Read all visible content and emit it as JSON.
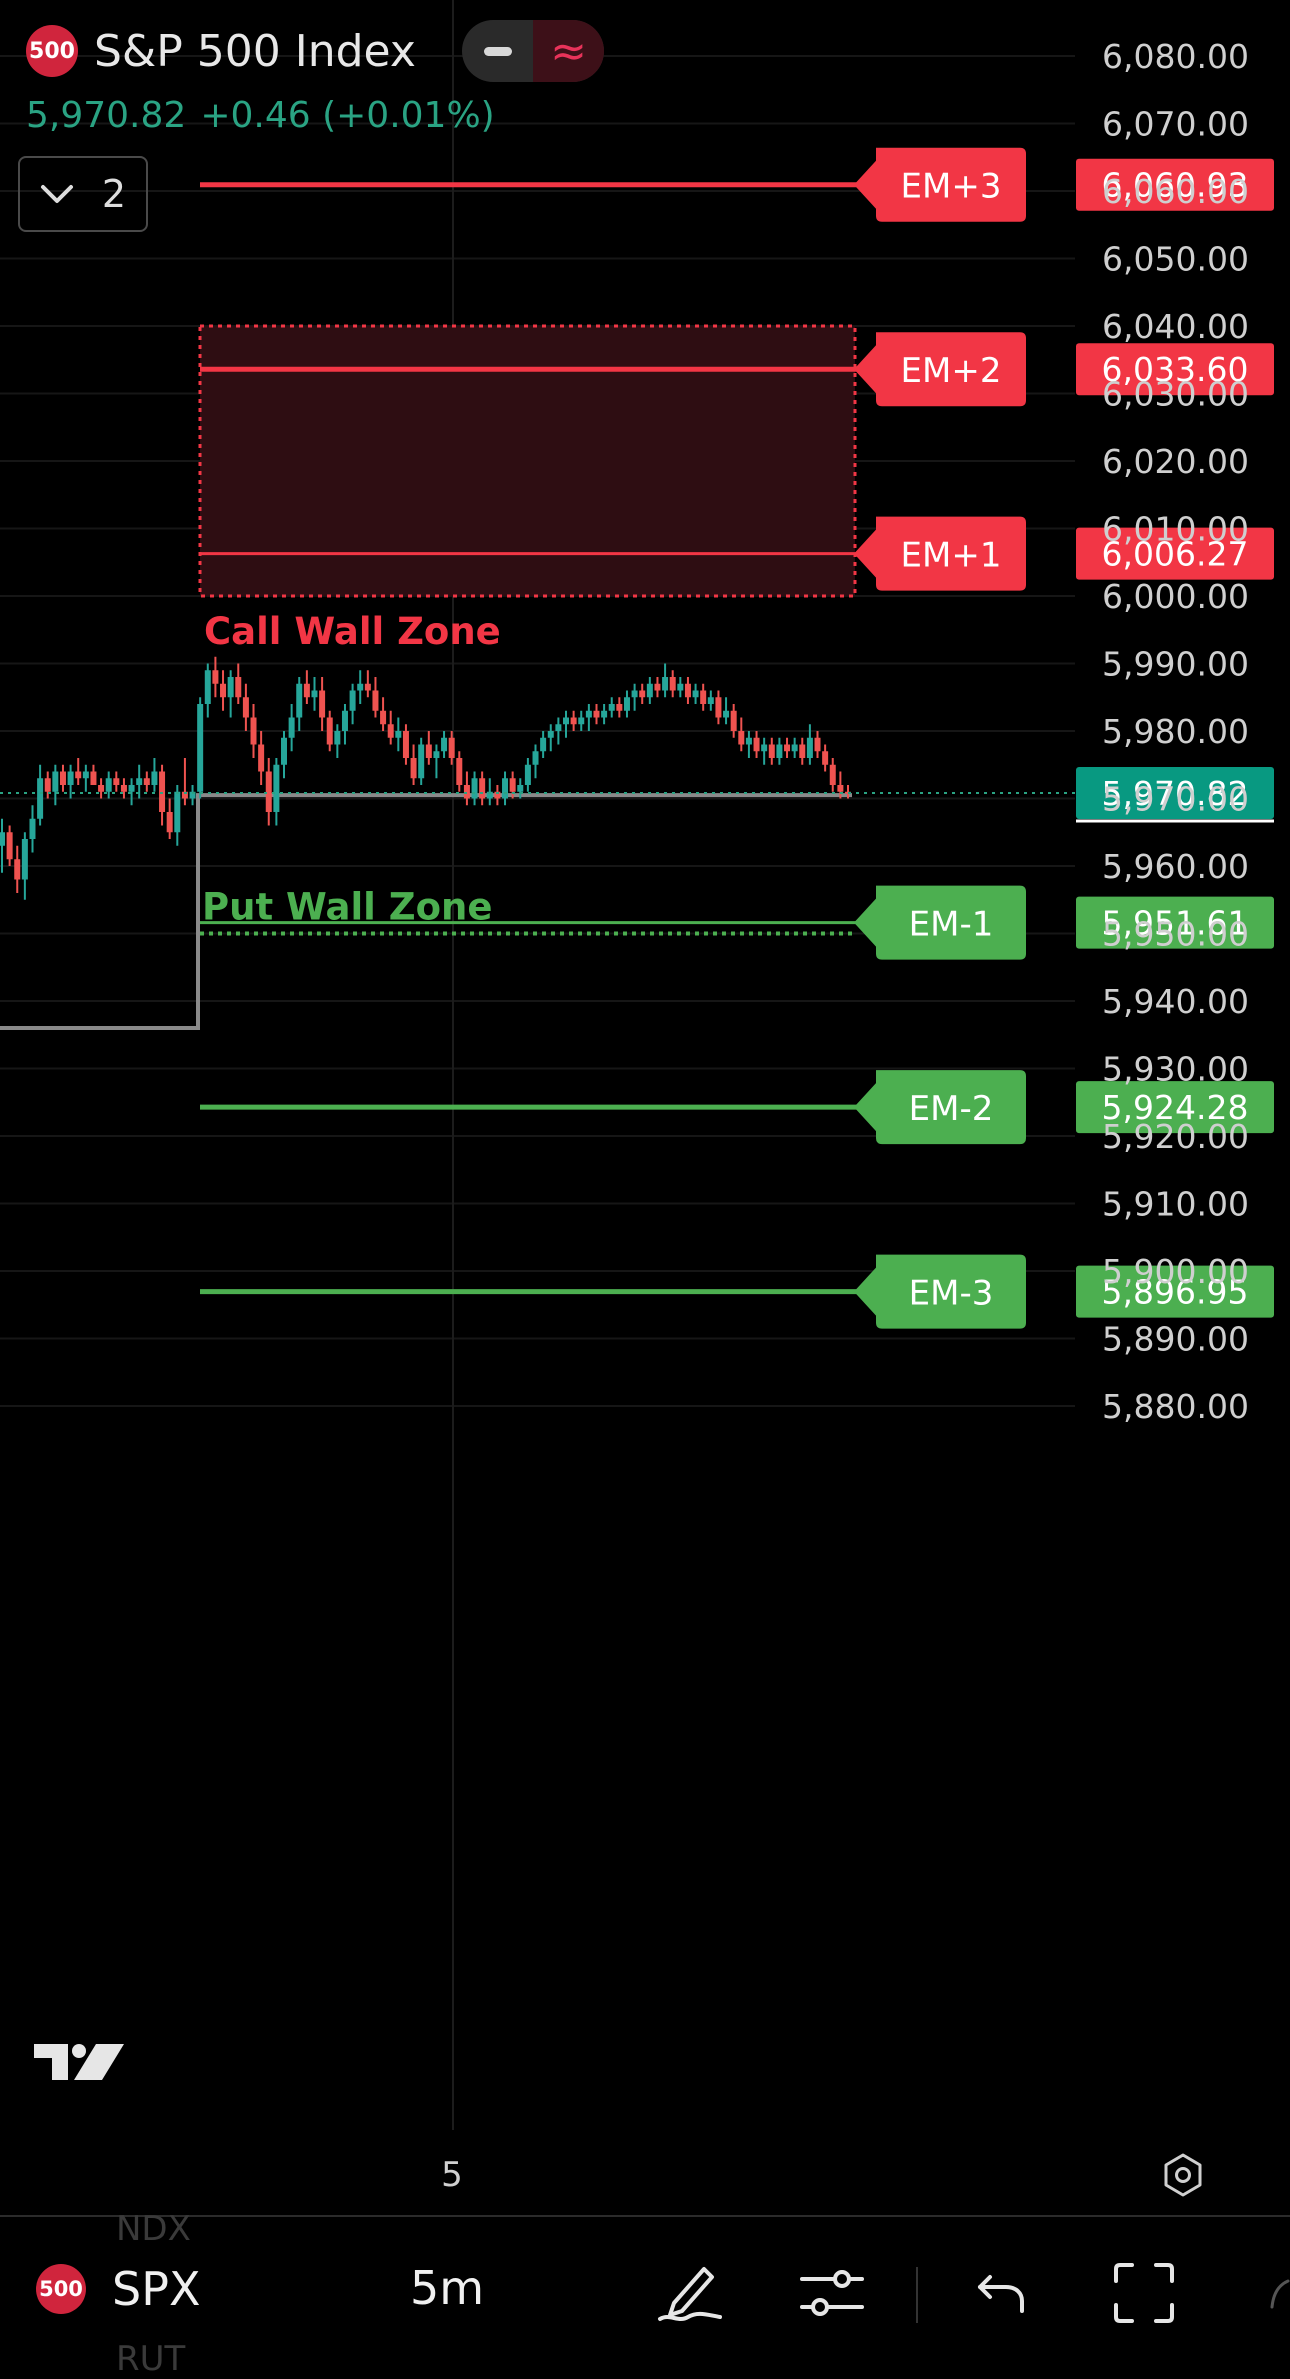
{
  "header": {
    "badge_text": "500",
    "title": "S&P 500 Index",
    "last_price": "5,970.82",
    "change": "+0.46 (+0.01%)",
    "collapse_count": "2",
    "mode_icons": [
      "minus-icon",
      "wave-icon"
    ]
  },
  "chart_data": {
    "type": "candlestick",
    "timeframe": "5m",
    "x_tick_labels": [
      "5"
    ],
    "y_axis": {
      "ylim": [
        5875,
        6085
      ],
      "tick_values": [
        6080,
        6070,
        6060,
        6050,
        6040,
        6030,
        6020,
        6010,
        6000,
        5990,
        5980,
        5970,
        5960,
        5950,
        5940,
        5930,
        5920,
        5910,
        5900,
        5890,
        5880
      ],
      "tick_labels": [
        "6,080.00",
        "6,070.00",
        "6,060.00",
        "6,050.00",
        "6,040.00",
        "6,030.00",
        "6,020.00",
        "6,010.00",
        "6,000.00",
        "5,990.00",
        "5,980.00",
        "5,970.00",
        "5,960.00",
        "5,950.00",
        "5,940.00",
        "5,930.00",
        "5,920.00",
        "5,910.00",
        "5,900.00",
        "5,890.00",
        "5,880.00"
      ]
    },
    "current_price": 5970.82,
    "current_price_label": "5,970.82",
    "levels": [
      {
        "name": "EM+3",
        "value": 6060.93,
        "label": "6,060.93",
        "color": "#f23645"
      },
      {
        "name": "EM+2",
        "value": 6033.6,
        "label": "6,033.60",
        "color": "#f23645"
      },
      {
        "name": "EM+1",
        "value": 6006.27,
        "label": "6,006.27",
        "color": "#f23645"
      },
      {
        "name": "EM-1",
        "value": 5951.61,
        "label": "5,951.61",
        "color": "#4caf50"
      },
      {
        "name": "EM-2",
        "value": 5924.28,
        "label": "5,924.28",
        "color": "#4caf50"
      },
      {
        "name": "EM-3",
        "value": 5896.95,
        "label": "5,896.95",
        "color": "#4caf50"
      }
    ],
    "zones": [
      {
        "name": "Call Wall Zone",
        "low": 6000.0,
        "high": 6040.0,
        "color": "#f23645"
      },
      {
        "name": "Put Wall Zone",
        "low": 5950.0,
        "high": 5950.0,
        "color": "#4caf50"
      }
    ],
    "range_box": {
      "low": 5936.0,
      "high": 5970.5,
      "color": "#8a8a8a"
    },
    "candles": [
      [
        5963,
        5967,
        5959,
        5965
      ],
      [
        5965,
        5966,
        5960,
        5961
      ],
      [
        5961,
        5963,
        5956,
        5958
      ],
      [
        5958,
        5965,
        5955,
        5964
      ],
      [
        5964,
        5969,
        5962,
        5967
      ],
      [
        5967,
        5975,
        5966,
        5973
      ],
      [
        5973,
        5974,
        5970,
        5971
      ],
      [
        5971,
        5975,
        5969,
        5974
      ],
      [
        5974,
        5975,
        5971,
        5972
      ],
      [
        5972,
        5975,
        5970,
        5974
      ],
      [
        5974,
        5976,
        5972,
        5973
      ],
      [
        5973,
        5975,
        5971,
        5974
      ],
      [
        5974,
        5975,
        5972,
        5972
      ],
      [
        5972,
        5973,
        5970,
        5971
      ],
      [
        5971,
        5974,
        5970,
        5973
      ],
      [
        5973,
        5974,
        5971,
        5972
      ],
      [
        5972,
        5973,
        5970,
        5971
      ],
      [
        5971,
        5973,
        5969,
        5972
      ],
      [
        5972,
        5975,
        5970,
        5973
      ],
      [
        5973,
        5974,
        5971,
        5972
      ],
      [
        5972,
        5976,
        5971,
        5974
      ],
      [
        5974,
        5975,
        5966,
        5968
      ],
      [
        5968,
        5970,
        5964,
        5965
      ],
      [
        5965,
        5972,
        5963,
        5971
      ],
      [
        5971,
        5976,
        5969,
        5970
      ],
      [
        5970,
        5972,
        5969,
        5971
      ],
      [
        5971,
        5985,
        5970,
        5984
      ],
      [
        5984,
        5990,
        5982,
        5989
      ],
      [
        5989,
        5991,
        5985,
        5987
      ],
      [
        5987,
        5989,
        5983,
        5985
      ],
      [
        5985,
        5989,
        5982,
        5988
      ],
      [
        5988,
        5990,
        5984,
        5985
      ],
      [
        5985,
        5987,
        5980,
        5982
      ],
      [
        5982,
        5984,
        5976,
        5978
      ],
      [
        5978,
        5980,
        5972,
        5974
      ],
      [
        5974,
        5976,
        5966,
        5968
      ],
      [
        5968,
        5976,
        5966,
        5975
      ],
      [
        5975,
        5980,
        5973,
        5979
      ],
      [
        5979,
        5984,
        5977,
        5982
      ],
      [
        5982,
        5988,
        5980,
        5987
      ],
      [
        5987,
        5989,
        5984,
        5985
      ],
      [
        5985,
        5988,
        5983,
        5986
      ],
      [
        5986,
        5988,
        5980,
        5982
      ],
      [
        5982,
        5983,
        5977,
        5978
      ],
      [
        5978,
        5981,
        5976,
        5980
      ],
      [
        5980,
        5984,
        5978,
        5983
      ],
      [
        5983,
        5987,
        5981,
        5986
      ],
      [
        5986,
        5989,
        5984,
        5987
      ],
      [
        5987,
        5989,
        5985,
        5986
      ],
      [
        5986,
        5988,
        5982,
        5983
      ],
      [
        5983,
        5985,
        5980,
        5981
      ],
      [
        5981,
        5983,
        5978,
        5979
      ],
      [
        5979,
        5982,
        5977,
        5980
      ],
      [
        5980,
        5981,
        5975,
        5976
      ],
      [
        5976,
        5978,
        5972,
        5973
      ],
      [
        5973,
        5979,
        5972,
        5978
      ],
      [
        5978,
        5980,
        5975,
        5976
      ],
      [
        5976,
        5978,
        5973,
        5977
      ],
      [
        5977,
        5980,
        5976,
        5979
      ],
      [
        5979,
        5980,
        5975,
        5976
      ],
      [
        5976,
        5977,
        5971,
        5972
      ],
      [
        5972,
        5974,
        5969,
        5970
      ],
      [
        5970,
        5974,
        5969,
        5973
      ],
      [
        5973,
        5974,
        5969,
        5970
      ],
      [
        5970,
        5973,
        5969,
        5971
      ],
      [
        5971,
        5972,
        5969,
        5970
      ],
      [
        5970,
        5974,
        5969,
        5973
      ],
      [
        5973,
        5974,
        5970,
        5971
      ],
      [
        5971,
        5973,
        5970,
        5972
      ],
      [
        5972,
        5976,
        5971,
        5975
      ],
      [
        5975,
        5978,
        5973,
        5977
      ],
      [
        5977,
        5980,
        5976,
        5979
      ],
      [
        5979,
        5981,
        5977,
        5980
      ],
      [
        5980,
        5982,
        5978,
        5981
      ],
      [
        5981,
        5983,
        5979,
        5982
      ],
      [
        5982,
        5983,
        5980,
        5981
      ],
      [
        5981,
        5983,
        5980,
        5982
      ],
      [
        5982,
        5984,
        5980,
        5983
      ],
      [
        5983,
        5984,
        5981,
        5982
      ],
      [
        5982,
        5984,
        5981,
        5983
      ],
      [
        5983,
        5985,
        5982,
        5984
      ],
      [
        5984,
        5985,
        5982,
        5983
      ],
      [
        5983,
        5986,
        5982,
        5985
      ],
      [
        5985,
        5987,
        5983,
        5986
      ],
      [
        5986,
        5987,
        5984,
        5985
      ],
      [
        5985,
        5988,
        5984,
        5987
      ],
      [
        5987,
        5988,
        5985,
        5986
      ],
      [
        5986,
        5990,
        5985,
        5988
      ],
      [
        5988,
        5989,
        5985,
        5986
      ],
      [
        5986,
        5988,
        5985,
        5987
      ],
      [
        5987,
        5988,
        5984,
        5985
      ],
      [
        5985,
        5987,
        5984,
        5986
      ],
      [
        5986,
        5987,
        5983,
        5984
      ],
      [
        5984,
        5986,
        5983,
        5985
      ],
      [
        5985,
        5986,
        5981,
        5982
      ],
      [
        5982,
        5985,
        5981,
        5983
      ],
      [
        5983,
        5984,
        5979,
        5980
      ],
      [
        5980,
        5982,
        5977,
        5978
      ],
      [
        5978,
        5980,
        5976,
        5979
      ],
      [
        5979,
        5980,
        5976,
        5977
      ],
      [
        5977,
        5979,
        5975,
        5978
      ],
      [
        5978,
        5979,
        5975,
        5976
      ],
      [
        5976,
        5979,
        5975,
        5978
      ],
      [
        5978,
        5979,
        5976,
        5977
      ],
      [
        5977,
        5979,
        5976,
        5978
      ],
      [
        5978,
        5979,
        5975,
        5976
      ],
      [
        5976,
        5981,
        5975,
        5979
      ],
      [
        5979,
        5980,
        5976,
        5977
      ],
      [
        5977,
        5978,
        5974,
        5975
      ],
      [
        5975,
        5976,
        5971,
        5972
      ],
      [
        5972,
        5974,
        5970,
        5971
      ],
      [
        5971,
        5972,
        5970,
        5970.82
      ]
    ]
  },
  "toolbar": {
    "symbol_badge": "500",
    "symbol": "SPX",
    "interval": "5m",
    "ghost_above": "NDX",
    "ghost_below": "RUT",
    "icons": [
      "draw-icon",
      "indicators-icon",
      "undo-icon",
      "fullscreen-icon"
    ]
  }
}
